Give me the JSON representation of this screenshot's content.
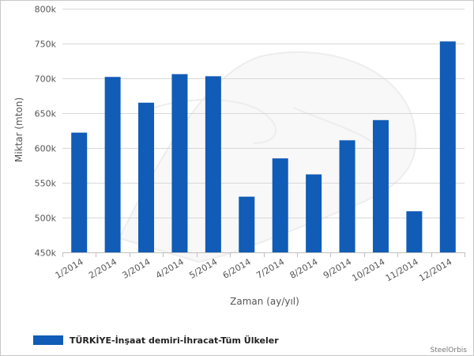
{
  "chart_data": {
    "type": "bar",
    "categories": [
      "1/2014",
      "2/2014",
      "3/2014",
      "4/2014",
      "5/2014",
      "6/2014",
      "7/2014",
      "8/2014",
      "9/2014",
      "10/2014",
      "11/2014",
      "12/2014"
    ],
    "series": [
      {
        "name": "TÜRKİYE-İnşaat demiri-İhracat-Tüm Ülkeler",
        "values": [
          622000,
          702000,
          665000,
          706000,
          703000,
          530000,
          585000,
          562000,
          611000,
          640000,
          509000,
          753000
        ],
        "color": "#105cb6"
      }
    ],
    "xlabel": "Zaman (ay/yıl)",
    "ylabel": "Miktar (mton)",
    "ylim": [
      450000,
      800000
    ],
    "yticks": [
      450000,
      500000,
      550000,
      600000,
      650000,
      700000,
      750000,
      800000
    ],
    "ytick_labels": [
      "450k",
      "500k",
      "550k",
      "600k",
      "650k",
      "700k",
      "750k",
      "800k"
    ],
    "grid": true,
    "legend_position": "bottom-left"
  },
  "credit": "SteelOrbis"
}
